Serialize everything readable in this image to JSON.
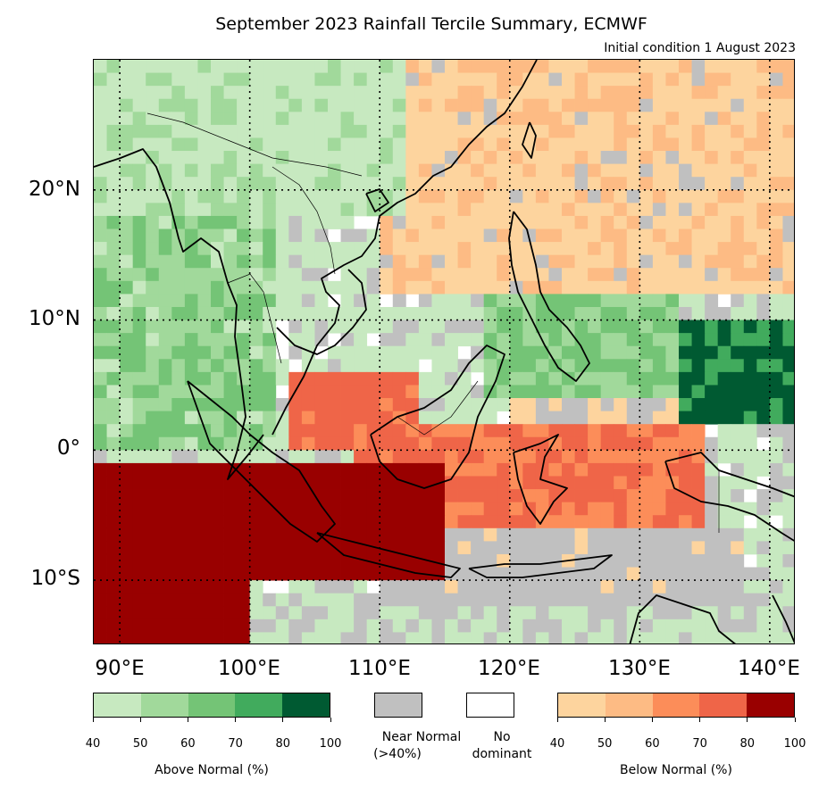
{
  "title": "September 2023 Rainfall Tercile Summary, ECMWF",
  "subtitle": "Initial condition 1 August 2023",
  "map": {
    "lon_range": [
      88,
      142
    ],
    "lat_range": [
      -15,
      30
    ],
    "lat_labels": [
      "20°N",
      "10°N",
      "0°",
      "10°S"
    ],
    "lon_labels": [
      "90°E",
      "100°E",
      "110°E",
      "120°E",
      "130°E",
      "140°E"
    ],
    "lon_gridlines": [
      90,
      100,
      110,
      120,
      130,
      140
    ],
    "lat_gridlines": [
      20,
      10,
      0,
      -10
    ]
  },
  "legend": {
    "above": {
      "colors": [
        "#c7e9c0",
        "#a1d99b",
        "#74c476",
        "#41ab5d",
        "#005a32"
      ],
      "ticks": [
        "40",
        "50",
        "60",
        "70",
        "80",
        "100"
      ],
      "label": "Above Normal (%)"
    },
    "near": {
      "color": "#c0c0c0",
      "label_line1": "Near Normal",
      "label_line2": "(>40%)"
    },
    "none": {
      "color": "#ffffff",
      "label_line1": "No",
      "label_line2": "dominant"
    },
    "below": {
      "colors": [
        "#fdd49e",
        "#fdbb84",
        "#fc8d59",
        "#ef6548",
        "#990000"
      ],
      "ticks": [
        "40",
        "50",
        "60",
        "70",
        "80",
        "100"
      ],
      "label": "Below Normal (%)"
    }
  }
}
